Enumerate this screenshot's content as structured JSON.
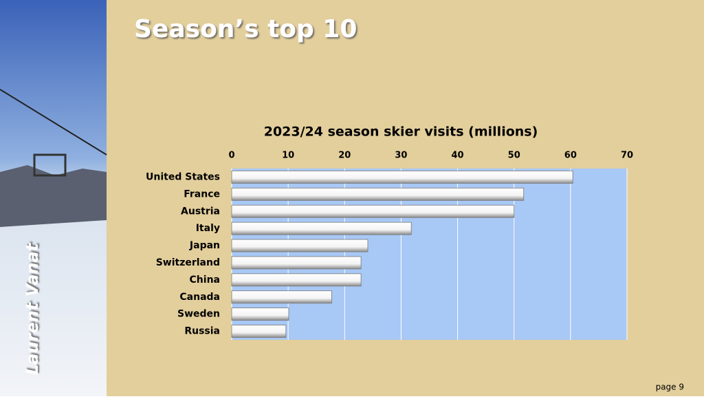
{
  "slide": {
    "title": "Season’s top 10",
    "author": "Laurent Vanat",
    "page": "page 9"
  },
  "chart_data": {
    "type": "bar",
    "orientation": "horizontal",
    "title": "2023/24 season skier visits (millions)",
    "categories": [
      "United States",
      "France",
      "Austria",
      "Italy",
      "Japan",
      "Switzerland",
      "China",
      "Canada",
      "Sweden",
      "Russia"
    ],
    "values": [
      60.4,
      51.7,
      50.0,
      31.8,
      24.1,
      22.9,
      22.9,
      17.7,
      10.1,
      9.6
    ],
    "color": "#ffffff",
    "xlim": [
      0,
      70
    ],
    "xticks": [
      0,
      10,
      20,
      30,
      40,
      50,
      60,
      70
    ],
    "grid": true
  }
}
